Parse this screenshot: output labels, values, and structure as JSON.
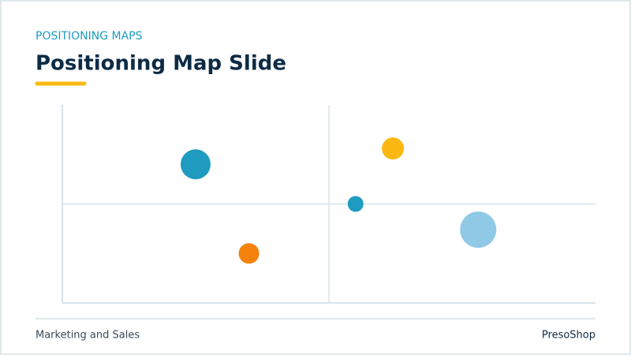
{
  "header": {
    "kicker": "POSITIONING MAPS",
    "title": "Positioning Map Slide"
  },
  "chart_data": {
    "type": "bubble",
    "x": [
      2.5,
      3.5,
      6.2,
      5.5,
      7.8
    ],
    "values": [
      7.0,
      2.5,
      7.8,
      5.0,
      3.7
    ],
    "sizes": [
      19,
      13,
      14,
      10,
      23
    ],
    "colors": [
      "#1f9bbf",
      "#f5820d",
      "#fbb812",
      "#1f9bbf",
      "#8fc9e6"
    ],
    "xlim": [
      0,
      10
    ],
    "ylim": [
      0,
      10
    ],
    "divider_x": 5,
    "divider_y": 5
  },
  "footer": {
    "left": "Marketing and Sales",
    "right": "PresoShop"
  }
}
